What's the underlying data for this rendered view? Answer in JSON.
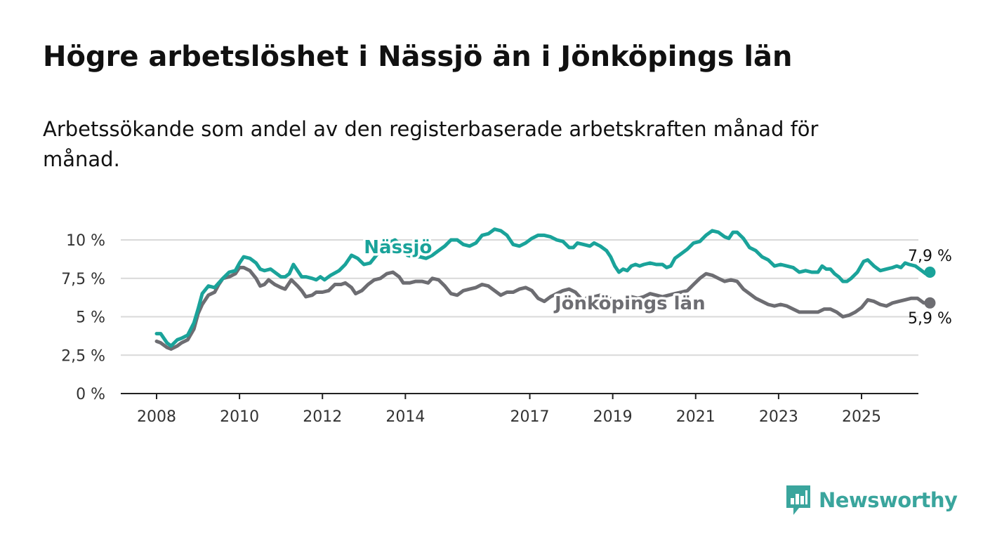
{
  "title": "Högre arbetslöshet i Nässjö än i Jönköpings län",
  "subtitle": "Arbetssökande som andel av den registerbaserade arbetskraften månad för månad.",
  "brand": {
    "name": "Newsworthy",
    "icon": "newsworthy-logo-icon",
    "color": "#3aa59d"
  },
  "chart_data": {
    "type": "line",
    "title": "Högre arbetslöshet i Nässjö än i Jönköpings län",
    "xlabel": "",
    "ylabel": "",
    "xlim": [
      2007.6,
      2026.4
    ],
    "ylim": [
      0,
      10
    ],
    "grid": true,
    "x_ticks": [
      {
        "value": 2008,
        "label": "2008"
      },
      {
        "value": 2010,
        "label": "2010"
      },
      {
        "value": 2012,
        "label": "2012"
      },
      {
        "value": 2014,
        "label": "2014"
      },
      {
        "value": 2017,
        "label": "2017"
      },
      {
        "value": 2019,
        "label": "2019"
      },
      {
        "value": 2021,
        "label": "2021"
      },
      {
        "value": 2023,
        "label": "2023"
      },
      {
        "value": 2025,
        "label": "2025"
      }
    ],
    "y_ticks": [
      {
        "value": 0,
        "label": "0 %"
      },
      {
        "value": 2.5,
        "label": "2,5 %"
      },
      {
        "value": 5,
        "label": "5 %"
      },
      {
        "value": 7.5,
        "label": "7,5 %"
      },
      {
        "value": 10,
        "label": "10 %"
      }
    ],
    "series": [
      {
        "name": "Nässjö",
        "color": "#1aa39a",
        "end_label": "7,9 %",
        "points": [
          [
            2008.0,
            3.9
          ],
          [
            2008.1,
            3.9
          ],
          [
            2008.25,
            3.3
          ],
          [
            2008.35,
            3.1
          ],
          [
            2008.5,
            3.5
          ],
          [
            2008.6,
            3.6
          ],
          [
            2008.75,
            3.8
          ],
          [
            2008.9,
            4.6
          ],
          [
            2009.0,
            5.5
          ],
          [
            2009.1,
            6.5
          ],
          [
            2009.25,
            7.0
          ],
          [
            2009.4,
            6.9
          ],
          [
            2009.5,
            7.2
          ],
          [
            2009.6,
            7.5
          ],
          [
            2009.75,
            7.9
          ],
          [
            2009.9,
            8.0
          ],
          [
            2010.0,
            8.5
          ],
          [
            2010.1,
            8.9
          ],
          [
            2010.25,
            8.8
          ],
          [
            2010.4,
            8.5
          ],
          [
            2010.5,
            8.1
          ],
          [
            2010.6,
            8.0
          ],
          [
            2010.75,
            8.1
          ],
          [
            2010.9,
            7.8
          ],
          [
            2011.0,
            7.6
          ],
          [
            2011.1,
            7.6
          ],
          [
            2011.2,
            7.8
          ],
          [
            2011.3,
            8.4
          ],
          [
            2011.4,
            8.0
          ],
          [
            2011.5,
            7.6
          ],
          [
            2011.6,
            7.6
          ],
          [
            2011.75,
            7.5
          ],
          [
            2011.85,
            7.4
          ],
          [
            2011.95,
            7.6
          ],
          [
            2012.05,
            7.4
          ],
          [
            2012.2,
            7.7
          ],
          [
            2012.4,
            8.0
          ],
          [
            2012.55,
            8.4
          ],
          [
            2012.7,
            9.0
          ],
          [
            2012.85,
            8.8
          ],
          [
            2013.0,
            8.4
          ],
          [
            2013.15,
            8.5
          ],
          [
            2013.3,
            9.0
          ],
          [
            2013.45,
            9.4
          ],
          [
            2013.6,
            9.8
          ],
          [
            2013.75,
            10.0
          ],
          [
            2013.9,
            9.6
          ],
          [
            2014.05,
            9.0
          ],
          [
            2014.2,
            8.9
          ],
          [
            2014.35,
            8.9
          ],
          [
            2014.5,
            8.8
          ],
          [
            2014.65,
            9.0
          ],
          [
            2014.8,
            9.3
          ],
          [
            2014.95,
            9.6
          ],
          [
            2015.1,
            10.0
          ],
          [
            2015.25,
            10.0
          ],
          [
            2015.4,
            9.7
          ],
          [
            2015.55,
            9.6
          ],
          [
            2015.7,
            9.8
          ],
          [
            2015.85,
            10.3
          ],
          [
            2016.0,
            10.4
          ],
          [
            2016.15,
            10.7
          ],
          [
            2016.3,
            10.6
          ],
          [
            2016.45,
            10.3
          ],
          [
            2016.6,
            9.7
          ],
          [
            2016.75,
            9.6
          ],
          [
            2016.9,
            9.8
          ],
          [
            2017.05,
            10.1
          ],
          [
            2017.2,
            10.3
          ],
          [
            2017.35,
            10.3
          ],
          [
            2017.5,
            10.2
          ],
          [
            2017.65,
            10.0
          ],
          [
            2017.8,
            9.9
          ],
          [
            2017.95,
            9.5
          ],
          [
            2018.05,
            9.5
          ],
          [
            2018.15,
            9.8
          ],
          [
            2018.3,
            9.7
          ],
          [
            2018.45,
            9.6
          ],
          [
            2018.55,
            9.8
          ],
          [
            2018.7,
            9.6
          ],
          [
            2018.85,
            9.3
          ],
          [
            2018.95,
            8.9
          ],
          [
            2019.05,
            8.3
          ],
          [
            2019.15,
            7.9
          ],
          [
            2019.25,
            8.1
          ],
          [
            2019.35,
            8.0
          ],
          [
            2019.45,
            8.3
          ],
          [
            2019.55,
            8.4
          ],
          [
            2019.65,
            8.3
          ],
          [
            2019.75,
            8.4
          ],
          [
            2019.9,
            8.5
          ],
          [
            2020.05,
            8.4
          ],
          [
            2020.2,
            8.4
          ],
          [
            2020.3,
            8.2
          ],
          [
            2020.4,
            8.3
          ],
          [
            2020.5,
            8.8
          ],
          [
            2020.65,
            9.1
          ],
          [
            2020.8,
            9.4
          ],
          [
            2020.95,
            9.8
          ],
          [
            2021.1,
            9.9
          ],
          [
            2021.25,
            10.3
          ],
          [
            2021.4,
            10.6
          ],
          [
            2021.55,
            10.5
          ],
          [
            2021.7,
            10.2
          ],
          [
            2021.8,
            10.1
          ],
          [
            2021.9,
            10.5
          ],
          [
            2022.0,
            10.5
          ],
          [
            2022.15,
            10.1
          ],
          [
            2022.3,
            9.5
          ],
          [
            2022.45,
            9.3
          ],
          [
            2022.6,
            8.9
          ],
          [
            2022.75,
            8.7
          ],
          [
            2022.9,
            8.3
          ],
          [
            2023.05,
            8.4
          ],
          [
            2023.2,
            8.3
          ],
          [
            2023.35,
            8.2
          ],
          [
            2023.5,
            7.9
          ],
          [
            2023.65,
            8.0
          ],
          [
            2023.8,
            7.9
          ],
          [
            2023.95,
            7.9
          ],
          [
            2024.05,
            8.3
          ],
          [
            2024.15,
            8.1
          ],
          [
            2024.25,
            8.1
          ],
          [
            2024.35,
            7.8
          ],
          [
            2024.45,
            7.6
          ],
          [
            2024.55,
            7.3
          ],
          [
            2024.65,
            7.3
          ],
          [
            2024.75,
            7.5
          ],
          [
            2024.9,
            7.9
          ],
          [
            2025.05,
            8.6
          ],
          [
            2025.15,
            8.7
          ],
          [
            2025.3,
            8.3
          ],
          [
            2025.45,
            8.0
          ],
          [
            2025.6,
            8.1
          ],
          [
            2025.75,
            8.2
          ],
          [
            2025.85,
            8.3
          ],
          [
            2025.95,
            8.2
          ],
          [
            2026.05,
            8.5
          ],
          [
            2026.15,
            8.4
          ],
          [
            2026.3,
            8.3
          ],
          [
            2026.45,
            8.0
          ],
          [
            2026.55,
            7.8
          ],
          [
            2026.65,
            7.9
          ]
        ]
      },
      {
        "name": "Jönköpings län",
        "color": "#6d6d72",
        "end_label": "5,9 %",
        "points": [
          [
            2008.0,
            3.4
          ],
          [
            2008.1,
            3.3
          ],
          [
            2008.25,
            3.0
          ],
          [
            2008.35,
            2.9
          ],
          [
            2008.5,
            3.1
          ],
          [
            2008.6,
            3.3
          ],
          [
            2008.75,
            3.5
          ],
          [
            2008.9,
            4.2
          ],
          [
            2009.0,
            5.2
          ],
          [
            2009.1,
            5.8
          ],
          [
            2009.25,
            6.4
          ],
          [
            2009.4,
            6.6
          ],
          [
            2009.5,
            7.1
          ],
          [
            2009.6,
            7.5
          ],
          [
            2009.75,
            7.6
          ],
          [
            2009.9,
            7.8
          ],
          [
            2010.0,
            8.2
          ],
          [
            2010.1,
            8.2
          ],
          [
            2010.25,
            8.0
          ],
          [
            2010.4,
            7.5
          ],
          [
            2010.5,
            7.0
          ],
          [
            2010.6,
            7.1
          ],
          [
            2010.7,
            7.4
          ],
          [
            2010.85,
            7.1
          ],
          [
            2011.0,
            6.9
          ],
          [
            2011.1,
            6.8
          ],
          [
            2011.25,
            7.4
          ],
          [
            2011.4,
            7.0
          ],
          [
            2011.5,
            6.7
          ],
          [
            2011.6,
            6.3
          ],
          [
            2011.75,
            6.4
          ],
          [
            2011.85,
            6.6
          ],
          [
            2012.0,
            6.6
          ],
          [
            2012.15,
            6.7
          ],
          [
            2012.3,
            7.1
          ],
          [
            2012.45,
            7.1
          ],
          [
            2012.55,
            7.2
          ],
          [
            2012.7,
            6.9
          ],
          [
            2012.8,
            6.5
          ],
          [
            2012.95,
            6.7
          ],
          [
            2013.1,
            7.1
          ],
          [
            2013.25,
            7.4
          ],
          [
            2013.4,
            7.5
          ],
          [
            2013.55,
            7.8
          ],
          [
            2013.7,
            7.9
          ],
          [
            2013.85,
            7.6
          ],
          [
            2013.95,
            7.2
          ],
          [
            2014.1,
            7.2
          ],
          [
            2014.25,
            7.3
          ],
          [
            2014.4,
            7.3
          ],
          [
            2014.55,
            7.2
          ],
          [
            2014.65,
            7.5
          ],
          [
            2014.8,
            7.4
          ],
          [
            2014.95,
            7.0
          ],
          [
            2015.1,
            6.5
          ],
          [
            2015.25,
            6.4
          ],
          [
            2015.4,
            6.7
          ],
          [
            2015.55,
            6.8
          ],
          [
            2015.7,
            6.9
          ],
          [
            2015.85,
            7.1
          ],
          [
            2016.0,
            7.0
          ],
          [
            2016.15,
            6.7
          ],
          [
            2016.3,
            6.4
          ],
          [
            2016.45,
            6.6
          ],
          [
            2016.6,
            6.6
          ],
          [
            2016.75,
            6.8
          ],
          [
            2016.9,
            6.9
          ],
          [
            2017.05,
            6.7
          ],
          [
            2017.2,
            6.2
          ],
          [
            2017.35,
            6.0
          ],
          [
            2017.5,
            6.3
          ],
          [
            2017.65,
            6.5
          ],
          [
            2017.8,
            6.7
          ],
          [
            2017.95,
            6.8
          ],
          [
            2018.1,
            6.6
          ],
          [
            2018.2,
            6.3
          ],
          [
            2018.3,
            6.0
          ],
          [
            2018.4,
            6.3
          ],
          [
            2018.55,
            6.3
          ],
          [
            2018.7,
            6.4
          ],
          [
            2018.85,
            6.3
          ],
          [
            2019.0,
            6.1
          ],
          [
            2019.15,
            6.0
          ],
          [
            2019.3,
            6.1
          ],
          [
            2019.45,
            6.3
          ],
          [
            2019.6,
            6.2
          ],
          [
            2019.75,
            6.3
          ],
          [
            2019.9,
            6.5
          ],
          [
            2020.05,
            6.4
          ],
          [
            2020.2,
            6.3
          ],
          [
            2020.35,
            6.4
          ],
          [
            2020.5,
            6.5
          ],
          [
            2020.65,
            6.6
          ],
          [
            2020.8,
            6.7
          ],
          [
            2020.95,
            7.1
          ],
          [
            2021.1,
            7.5
          ],
          [
            2021.25,
            7.8
          ],
          [
            2021.4,
            7.7
          ],
          [
            2021.55,
            7.5
          ],
          [
            2021.7,
            7.3
          ],
          [
            2021.85,
            7.4
          ],
          [
            2022.0,
            7.3
          ],
          [
            2022.15,
            6.8
          ],
          [
            2022.3,
            6.5
          ],
          [
            2022.45,
            6.2
          ],
          [
            2022.6,
            6.0
          ],
          [
            2022.75,
            5.8
          ],
          [
            2022.9,
            5.7
          ],
          [
            2023.05,
            5.8
          ],
          [
            2023.2,
            5.7
          ],
          [
            2023.35,
            5.5
          ],
          [
            2023.5,
            5.3
          ],
          [
            2023.65,
            5.3
          ],
          [
            2023.8,
            5.3
          ],
          [
            2023.95,
            5.3
          ],
          [
            2024.1,
            5.5
          ],
          [
            2024.25,
            5.5
          ],
          [
            2024.4,
            5.3
          ],
          [
            2024.55,
            5.0
          ],
          [
            2024.7,
            5.1
          ],
          [
            2024.85,
            5.3
          ],
          [
            2025.0,
            5.6
          ],
          [
            2025.15,
            6.1
          ],
          [
            2025.3,
            6.0
          ],
          [
            2025.45,
            5.8
          ],
          [
            2025.6,
            5.7
          ],
          [
            2025.75,
            5.9
          ],
          [
            2025.9,
            6.0
          ],
          [
            2026.05,
            6.1
          ],
          [
            2026.2,
            6.2
          ],
          [
            2026.35,
            6.2
          ],
          [
            2026.5,
            5.9
          ],
          [
            2026.65,
            5.9
          ]
        ]
      }
    ]
  }
}
